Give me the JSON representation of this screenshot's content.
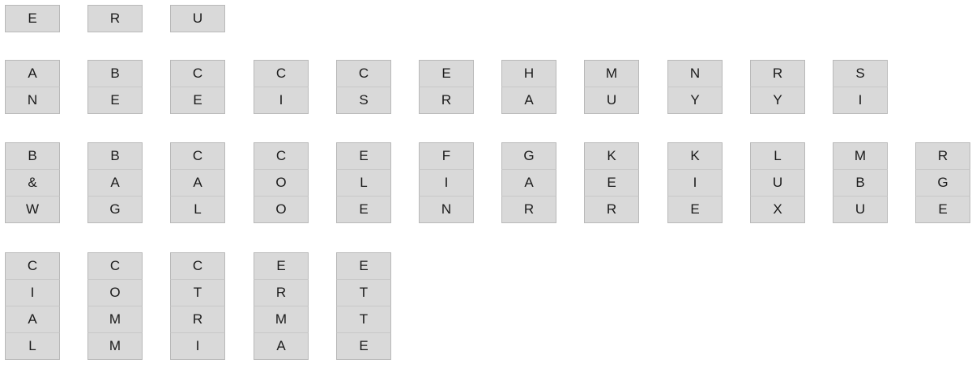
{
  "rows": [
    {
      "groups": [
        [
          "E"
        ],
        [
          "R"
        ],
        [
          "U"
        ]
      ]
    },
    {
      "groups": [
        [
          "A",
          "N"
        ],
        [
          "B",
          "E"
        ],
        [
          "C",
          "E"
        ],
        [
          "C",
          "I"
        ],
        [
          "C",
          "S"
        ],
        [
          "E",
          "R"
        ],
        [
          "H",
          "A"
        ],
        [
          "M",
          "U"
        ],
        [
          "N",
          "Y"
        ],
        [
          "R",
          "Y"
        ],
        [
          "S",
          "I"
        ]
      ]
    },
    {
      "groups": [
        [
          "B",
          "&",
          "W"
        ],
        [
          "B",
          "A",
          "G"
        ],
        [
          "C",
          "A",
          "L"
        ],
        [
          "C",
          "O",
          "O"
        ],
        [
          "E",
          "L",
          "E"
        ],
        [
          "F",
          "I",
          "N"
        ],
        [
          "G",
          "A",
          "R"
        ],
        [
          "K",
          "E",
          "R"
        ],
        [
          "K",
          "I",
          "E"
        ],
        [
          "L",
          "U",
          "X"
        ],
        [
          "M",
          "B",
          "U"
        ],
        [
          "R",
          "G",
          "E"
        ]
      ]
    },
    {
      "groups": [
        [
          "C",
          "I",
          "A",
          "L"
        ],
        [
          "C",
          "O",
          "M",
          "M"
        ],
        [
          "C",
          "T",
          "R",
          "I"
        ],
        [
          "E",
          "R",
          "M",
          "A"
        ],
        [
          "E",
          "T",
          "T",
          "E"
        ]
      ]
    }
  ]
}
